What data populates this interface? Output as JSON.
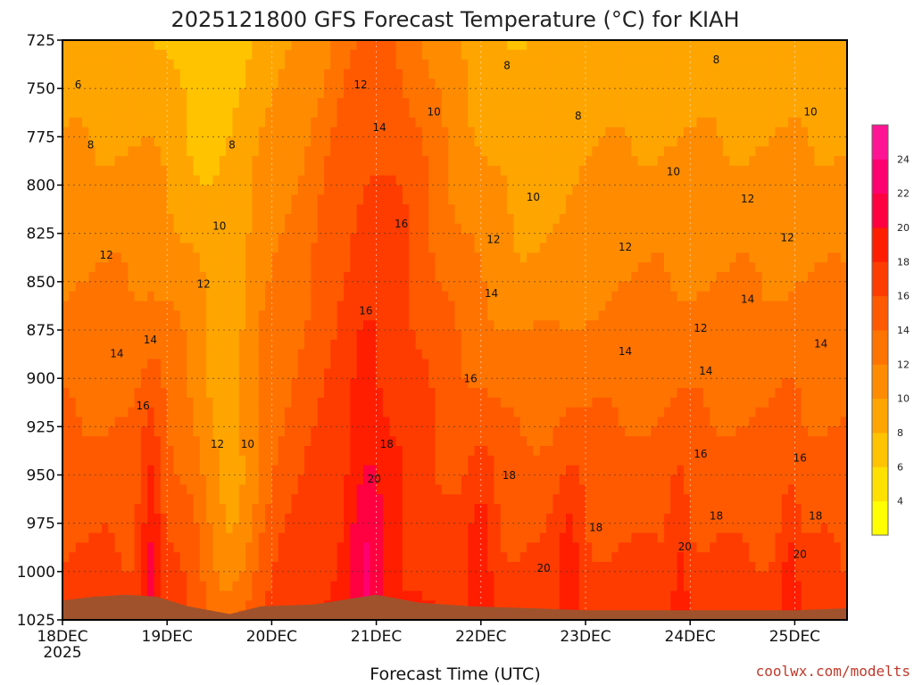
{
  "chart_data": {
    "type": "heatmap",
    "title": "2025121800 GFS Forecast Temperature (°C) for KIAH",
    "xlabel": "Forecast Time (UTC)",
    "ylabel": "",
    "credit": "coolwx.com/modelts",
    "x_ticks": [
      "18DEC",
      "19DEC",
      "20DEC",
      "21DEC",
      "22DEC",
      "23DEC",
      "24DEC",
      "25DEC"
    ],
    "x_year": "2025",
    "y_ticks": [
      725,
      750,
      775,
      800,
      825,
      850,
      875,
      900,
      925,
      950,
      975,
      1000,
      1025
    ],
    "ylim": [
      725,
      1025
    ],
    "xlim_days": [
      0,
      7.5
    ],
    "colorbar": {
      "levels": [
        4,
        6,
        8,
        10,
        12,
        14,
        16,
        18,
        20,
        22,
        24
      ],
      "colors": [
        "#ffff00",
        "#ffe100",
        "#ffc300",
        "#ffa500",
        "#ff8c00",
        "#ff7300",
        "#ff5a00",
        "#ff3c00",
        "#ff1e00",
        "#ff0040",
        "#ff0070",
        "#ff1493"
      ]
    },
    "contour_labels": [
      {
        "t": 0.15,
        "p": 750,
        "v": "6"
      },
      {
        "t": 0.27,
        "p": 781,
        "v": "8"
      },
      {
        "t": 0.42,
        "p": 838,
        "v": "12"
      },
      {
        "t": 0.52,
        "p": 889,
        "v": "14"
      },
      {
        "t": 0.84,
        "p": 882,
        "v": "14"
      },
      {
        "t": 0.77,
        "p": 916,
        "v": "16"
      },
      {
        "t": 1.62,
        "p": 781,
        "v": "8"
      },
      {
        "t": 1.5,
        "p": 823,
        "v": "10"
      },
      {
        "t": 1.35,
        "p": 853,
        "v": "12"
      },
      {
        "t": 1.48,
        "p": 936,
        "v": "12"
      },
      {
        "t": 1.77,
        "p": 936,
        "v": "10"
      },
      {
        "t": 2.85,
        "p": 750,
        "v": "12"
      },
      {
        "t": 3.03,
        "p": 772,
        "v": "14"
      },
      {
        "t": 3.24,
        "p": 822,
        "v": "16"
      },
      {
        "t": 2.9,
        "p": 867,
        "v": "16"
      },
      {
        "t": 3.1,
        "p": 936,
        "v": "18"
      },
      {
        "t": 2.98,
        "p": 954,
        "v": "20"
      },
      {
        "t": 3.55,
        "p": 764,
        "v": "10"
      },
      {
        "t": 4.25,
        "p": 740,
        "v": "8"
      },
      {
        "t": 4.93,
        "p": 766,
        "v": "8"
      },
      {
        "t": 4.5,
        "p": 808,
        "v": "10"
      },
      {
        "t": 4.1,
        "p": 858,
        "v": "14"
      },
      {
        "t": 3.9,
        "p": 902,
        "v": "16"
      },
      {
        "t": 4.27,
        "p": 952,
        "v": "18"
      },
      {
        "t": 4.12,
        "p": 830,
        "v": "12"
      },
      {
        "t": 5.38,
        "p": 834,
        "v": "12"
      },
      {
        "t": 5.1,
        "p": 979,
        "v": "18"
      },
      {
        "t": 4.6,
        "p": 1000,
        "v": "20"
      },
      {
        "t": 5.38,
        "p": 888,
        "v": "14"
      },
      {
        "t": 5.84,
        "p": 795,
        "v": "10"
      },
      {
        "t": 6.25,
        "p": 737,
        "v": "8"
      },
      {
        "t": 6.55,
        "p": 809,
        "v": "12"
      },
      {
        "t": 6.93,
        "p": 829,
        "v": "12"
      },
      {
        "t": 6.55,
        "p": 861,
        "v": "14"
      },
      {
        "t": 6.1,
        "p": 876,
        "v": "12"
      },
      {
        "t": 6.15,
        "p": 898,
        "v": "14"
      },
      {
        "t": 7.25,
        "p": 884,
        "v": "14"
      },
      {
        "t": 6.1,
        "p": 941,
        "v": "16"
      },
      {
        "t": 7.05,
        "p": 943,
        "v": "16"
      },
      {
        "t": 6.25,
        "p": 973,
        "v": "18"
      },
      {
        "t": 7.2,
        "p": 973,
        "v": "18"
      },
      {
        "t": 5.95,
        "p": 989,
        "v": "20"
      },
      {
        "t": 7.05,
        "p": 993,
        "v": "20"
      },
      {
        "t": 7.15,
        "p": 764,
        "v": "10"
      }
    ]
  }
}
